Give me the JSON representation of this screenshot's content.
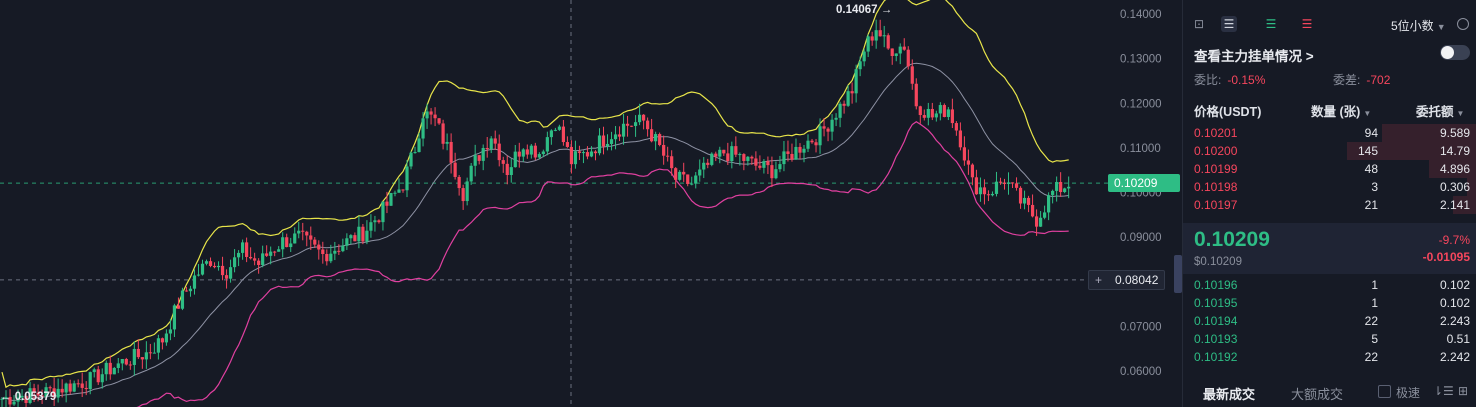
{
  "chart": {
    "y_axis_labels": [
      "0.14000",
      "0.13000",
      "0.12000",
      "0.11000",
      "0.10000",
      "0.09000",
      "0.08000",
      "0.07000",
      "0.06000"
    ],
    "current_price_tag": "0.10209",
    "crosshair_price_tag": "0.08042",
    "high_label": "0.14067 →",
    "low_label": "← 0.05379",
    "colors": {
      "up": "#2ebd85",
      "down": "#f6465d",
      "upper_band": "#e8e54a",
      "middle_band": "#8e92a4",
      "lower_band": "#e040a0",
      "background": "#161a25"
    }
  },
  "chart_data": {
    "type": "candlestick",
    "ylim": [
      0.055,
      0.1415
    ],
    "y_ticks": [
      0.14,
      0.13,
      0.12,
      0.11,
      0.1,
      0.09,
      0.08,
      0.07,
      0.06
    ],
    "current_price": 0.10209,
    "crosshair_price": 0.08042,
    "high": 0.14067,
    "low": 0.05379,
    "indicators": [
      "bollinger-upper",
      "bollinger-middle",
      "bollinger-lower"
    ]
  },
  "orderbook": {
    "toolbar": {
      "decimals": "5位小数"
    },
    "mainforce_label": "查看主力挂单情况 >",
    "ratio_label": "委比:",
    "ratio_value": "-0.15%",
    "diff_label": "委差:",
    "diff_value": "-702",
    "headers": {
      "price": "价格(USDT)",
      "qty": "数量 (张)",
      "amount": "委托额"
    },
    "asks": [
      {
        "price": "0.10201",
        "qty": "94",
        "amount": "9.589",
        "depth": 0.32
      },
      {
        "price": "0.10200",
        "qty": "145",
        "amount": "14.79",
        "depth": 0.44
      },
      {
        "price": "0.10199",
        "qty": "48",
        "amount": "4.896",
        "depth": 0.16
      },
      {
        "price": "0.10198",
        "qty": "3",
        "amount": "0.306",
        "depth": 0.03
      },
      {
        "price": "0.10197",
        "qty": "21",
        "amount": "2.141",
        "depth": 0.08
      }
    ],
    "mid": {
      "price": "0.10209",
      "usd": "$0.10209",
      "pct": "-9.7%",
      "change": "-0.01095"
    },
    "bids": [
      {
        "price": "0.10196",
        "qty": "1",
        "amount": "0.102",
        "depth": 0.0
      },
      {
        "price": "0.10195",
        "qty": "1",
        "amount": "0.102",
        "depth": 0.0
      },
      {
        "price": "0.10194",
        "qty": "22",
        "amount": "2.243",
        "depth": 0.0
      },
      {
        "price": "0.10193",
        "qty": "5",
        "amount": "0.51",
        "depth": 0.0
      },
      {
        "price": "0.10192",
        "qty": "22",
        "amount": "2.242",
        "depth": 0.0
      }
    ],
    "tabs": {
      "latest": "最新成交",
      "large": "大额成交",
      "fast": "极速"
    }
  }
}
